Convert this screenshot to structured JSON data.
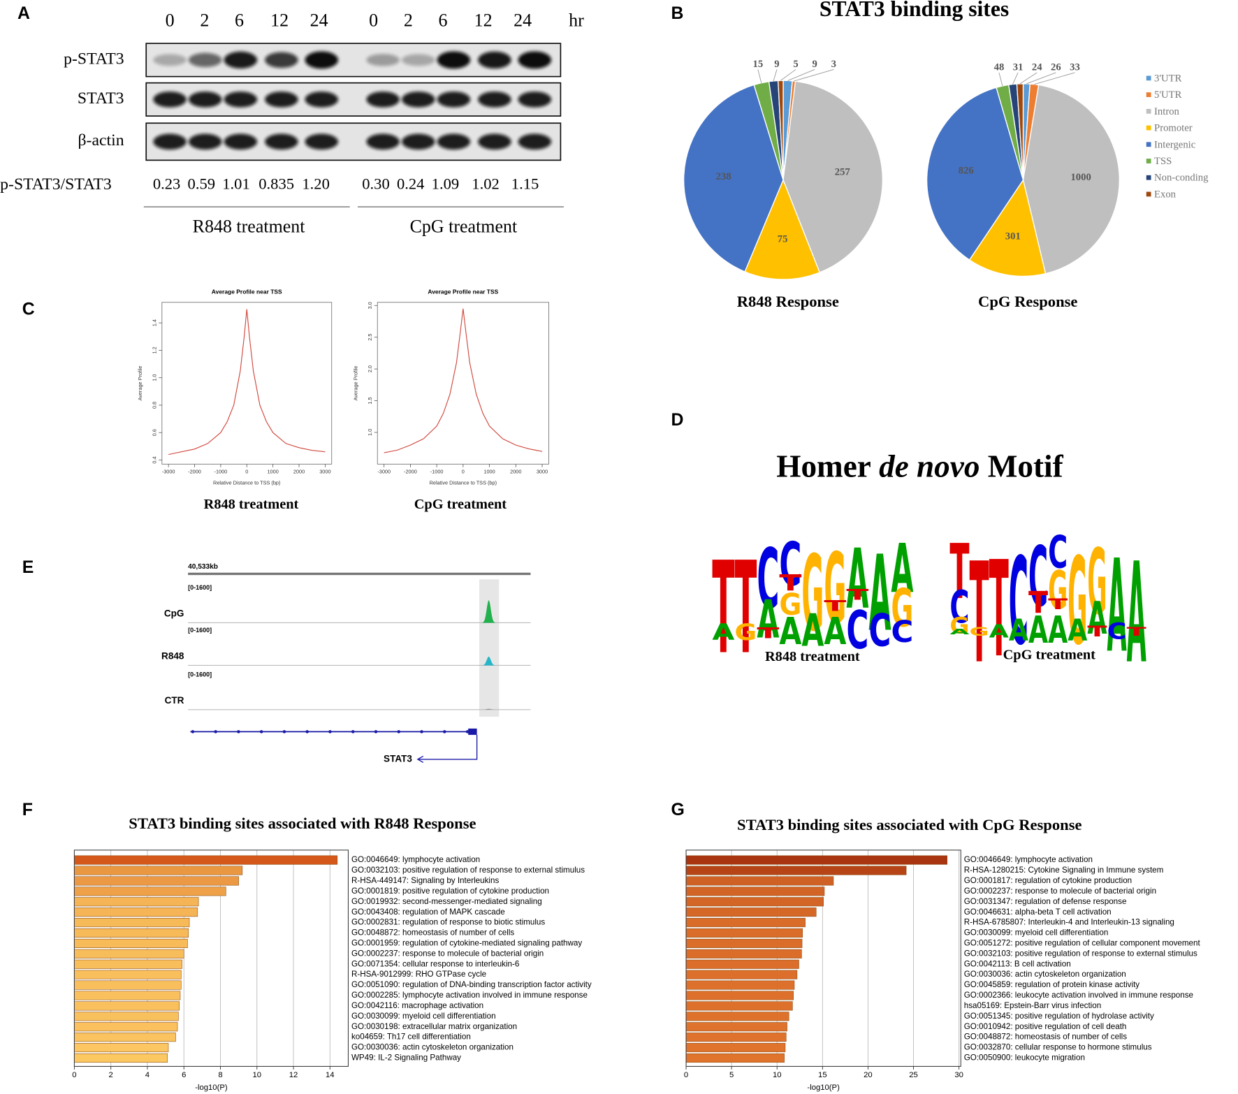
{
  "panel_labels": [
    "A",
    "B",
    "C",
    "D",
    "E",
    "F",
    "G"
  ],
  "western_blot": {
    "timepoints": [
      "0",
      "2",
      "6",
      "12",
      "24",
      "0",
      "2",
      "6",
      "12",
      "24"
    ],
    "time_unit": "hr",
    "rows": [
      "p-STAT3",
      "STAT3",
      "β-actin"
    ],
    "ratio_label": "p-STAT3/STAT3",
    "ratios": [
      "0.23",
      "0.59",
      "1.01",
      "0.835",
      "1.20",
      "0.30",
      "0.24",
      "1.09",
      "1.02",
      "1.15"
    ],
    "groups": [
      "R848 treatment",
      "CpG treatment"
    ]
  },
  "pie_title": "STAT3 binding sites",
  "chart_data": [
    {
      "type": "pie",
      "title": "R848 Response",
      "categories": [
        "3'UTR",
        "5'UTR",
        "Intron",
        "Promoter",
        "Intergenic",
        "TSS",
        "Non-conding",
        "Exon"
      ],
      "values": [
        9,
        3,
        257,
        75,
        238,
        15,
        9,
        5
      ],
      "colors": [
        "#5b9bd5",
        "#ed7d31",
        "#bfbfbf",
        "#ffc000",
        "#4472c4",
        "#70ad47",
        "#264478",
        "#9e480e"
      ],
      "legend": "right"
    },
    {
      "type": "pie",
      "title": "CpG Response",
      "categories": [
        "3'UTR",
        "5'UTR",
        "Intron",
        "Promoter",
        "Intergenic",
        "TSS",
        "Non-conding",
        "Exon"
      ],
      "values": [
        26,
        33,
        1000,
        301,
        826,
        48,
        31,
        24
      ],
      "colors": [
        "#5b9bd5",
        "#ed7d31",
        "#bfbfbf",
        "#ffc000",
        "#4472c4",
        "#70ad47",
        "#264478",
        "#9e480e"
      ]
    },
    {
      "type": "line",
      "title": "Average Profile near TSS",
      "caption": "R848 treatment",
      "x_label": "Relative Distance to TSS (bp)",
      "y_label": "Average Profile",
      "x": [
        -3000,
        -2500,
        -2000,
        -1500,
        -1000,
        -750,
        -500,
        -250,
        -100,
        0,
        100,
        250,
        500,
        750,
        1000,
        1500,
        2000,
        2500,
        3000
      ],
      "values": [
        0.44,
        0.46,
        0.48,
        0.52,
        0.6,
        0.68,
        0.8,
        1.05,
        1.3,
        1.5,
        1.3,
        1.05,
        0.8,
        0.68,
        0.6,
        0.52,
        0.49,
        0.47,
        0.46
      ],
      "color": "#d0463c",
      "xlim": [
        -3250,
        3250
      ],
      "xticks": [
        -3000,
        -2000,
        -1000,
        0,
        1000,
        2000,
        3000
      ],
      "ylim": [
        0.37,
        1.55
      ],
      "yticks": [
        0.4,
        0.6,
        0.8,
        {
          "value": 1,
          "label": "1.0"
        },
        1.2,
        1.4
      ]
    },
    {
      "type": "line",
      "title": "Average Profile near TSS",
      "caption": "CpG treatment",
      "x_label": "Relative Distance to TSS (bp)",
      "y_label": "Average Profile",
      "x": [
        -3000,
        -2500,
        -2000,
        -1500,
        -1000,
        -750,
        -500,
        -250,
        -100,
        0,
        100,
        250,
        500,
        750,
        1000,
        1500,
        2000,
        2500,
        3000
      ],
      "values": [
        0.68,
        0.72,
        0.8,
        0.9,
        1.1,
        1.3,
        1.6,
        2.1,
        2.6,
        2.95,
        2.6,
        2.1,
        1.6,
        1.3,
        1.1,
        0.9,
        0.8,
        0.74,
        0.7
      ],
      "color": "#d0463c",
      "xlim": [
        -3250,
        3250
      ],
      "xticks": [
        -3000,
        -2000,
        -1000,
        0,
        1000,
        2000,
        3000
      ],
      "ylim": [
        0.5,
        3.05
      ],
      "yticks": [
        {
          "value": 1,
          "label": "1.0"
        },
        1.5,
        {
          "value": 2,
          "label": "2.0"
        },
        2.5,
        {
          "value": 3,
          "label": "3.0"
        }
      ]
    },
    {
      "type": "hbar",
      "title": "STAT3 binding sites associated with R848 Response",
      "x_label": "-log10(P)",
      "categories": [
        "GO:0046649: lymphocyte activation",
        "GO:0032103: positive regulation of response to external stimulus",
        "R-HSA-449147: Signaling by Interleukins",
        "GO:0001819: positive regulation of cytokine production",
        "GO:0019932: second-messenger-mediated signaling",
        "GO:0043408: regulation of MAPK cascade",
        "GO:0002831: regulation of response to biotic stimulus",
        "GO:0048872: homeostasis of number of cells",
        "GO:0001959: regulation of cytokine-mediated signaling pathway",
        "GO:0002237: response to molecule of bacterial origin",
        "GO:0071354: cellular response to interleukin-6",
        "R-HSA-9012999: RHO GTPase cycle",
        "GO:0051090: regulation of DNA-binding transcription factor activity",
        "GO:0002285: lymphocyte activation involved in immune response",
        "GO:0042116: macrophage activation",
        "GO:0030099: myeloid cell differentiation",
        "GO:0030198: extracellular matrix organization",
        "ko04659: Th17 cell differentiation",
        "GO:0030036: actin cytoskeleton organization",
        "WP49: IL-2 Signaling Pathway"
      ],
      "values": [
        14.4,
        9.2,
        9.0,
        8.3,
        6.8,
        6.75,
        6.3,
        6.25,
        6.2,
        6.0,
        5.9,
        5.85,
        5.85,
        5.8,
        5.75,
        5.7,
        5.65,
        5.55,
        5.15,
        5.1
      ],
      "color_scale": [
        "#fcc862",
        "#d4581a"
      ],
      "xlim": [
        0,
        15
      ],
      "xticks": [
        0,
        2,
        4,
        6,
        8,
        10,
        12,
        14
      ],
      "grid": true
    },
    {
      "type": "hbar",
      "title": "STAT3 binding sites associated with CpG Response",
      "x_label": "-log10(P)",
      "categories": [
        "GO:0046649: lymphocyte activation",
        "R-HSA-1280215: Cytokine Signaling in Immune system",
        "GO:0001817: regulation of cytokine production",
        "GO:0002237: response to molecule of bacterial origin",
        "GO:0031347: regulation of defense response",
        "GO:0046631: alpha-beta T cell activation",
        "R-HSA-6785807: Interleukin-4 and Interleukin-13 signaling",
        "GO:0030099: myeloid cell differentiation",
        "GO:0051272: positive regulation of cellular component movement",
        "GO:0032103: positive regulation of response to external stimulus",
        "GO:0042113: B cell activation",
        "GO:0030036: actin cytoskeleton organization",
        "GO:0045859: regulation of protein kinase activity",
        "GO:0002366: leukocyte activation involved in immune response",
        "hsa05169: Epstein-Barr virus infection",
        "GO:0051345: positive regulation of hydrolase activity",
        "GO:0010942: positive regulation of cell death",
        "GO:0048872: homeostasis of number of cells",
        "GO:0032870: cellular response to hormone stimulus",
        "GO:0050900: leukocyte migration"
      ],
      "values": [
        28.7,
        24.2,
        16.2,
        15.2,
        15.1,
        14.3,
        13.1,
        12.8,
        12.75,
        12.7,
        12.4,
        12.2,
        11.9,
        11.8,
        11.7,
        11.3,
        11.1,
        11.0,
        10.9,
        10.8
      ],
      "color_scale": [
        "#e0742d",
        "#a83410"
      ],
      "xlim": [
        0,
        30.2
      ],
      "xticks": [
        0,
        5,
        10,
        15,
        20,
        25,
        30
      ],
      "grid": true
    }
  ],
  "motifs": {
    "title": [
      "Homer",
      "de novo",
      "Motif"
    ],
    "colors": {
      "A": "#00a000",
      "C": "#0000e0",
      "G": "#ffb300",
      "T": "#e00000"
    },
    "logos": [
      {
        "caption": "R848 treatment",
        "columns": [
          [
            [
              "T",
              0.85
            ],
            [
              "A",
              0.15
            ]
          ],
          [
            [
              "T",
              0.85
            ],
            [
              "G",
              0.15
            ]
          ],
          [
            [
              "C",
              0.55
            ],
            [
              "A",
              0.35
            ],
            [
              "T",
              0.1
            ]
          ],
          [
            [
              "C",
              0.4
            ],
            [
              "T",
              0.15
            ],
            [
              "G",
              0.2
            ],
            [
              "A",
              0.25
            ]
          ],
          [
            [
              "G",
              0.7
            ],
            [
              "A",
              0.3
            ]
          ],
          [
            [
              "G",
              0.65
            ],
            [
              "T",
              0.1
            ],
            [
              "A",
              0.25
            ]
          ],
          [
            [
              "A",
              0.55
            ],
            [
              "T",
              0.1
            ],
            [
              "C",
              0.35
            ]
          ],
          [
            [
              "A",
              0.7
            ],
            [
              "C",
              0.3
            ]
          ],
          [
            [
              "A",
              0.45
            ],
            [
              "G",
              0.35
            ],
            [
              "C",
              0.2
            ]
          ]
        ]
      },
      {
        "caption": "CpG treatment",
        "columns": [
          [
            [
              "T",
              0.5
            ],
            [
              "C",
              0.3
            ],
            [
              "G",
              0.15
            ],
            [
              "A",
              0.05
            ]
          ],
          [
            [
              "T",
              0.92
            ],
            [
              "G",
              0.08
            ]
          ],
          [
            [
              "T",
              0.88
            ],
            [
              "A",
              0.12
            ]
          ],
          [
            [
              "C",
              0.8
            ],
            [
              "A",
              0.2
            ]
          ],
          [
            [
              "C",
              0.55
            ],
            [
              "T",
              0.2
            ],
            [
              "A",
              0.25
            ]
          ],
          [
            [
              "C",
              0.3
            ],
            [
              "G",
              0.35
            ],
            [
              "T",
              0.1
            ],
            [
              "A",
              0.25
            ]
          ],
          [
            [
              "G",
              0.8
            ],
            [
              "A",
              0.2
            ]
          ],
          [
            [
              "G",
              0.6
            ],
            [
              "A",
              0.3
            ],
            [
              "T",
              0.1
            ]
          ],
          [
            [
              "A",
              0.85
            ],
            [
              "C",
              0.15
            ]
          ],
          [
            [
              "A",
              0.92
            ],
            [
              "T",
              0.08
            ]
          ]
        ]
      }
    ]
  },
  "genome_track": {
    "coordinate": "40,533kb",
    "tracks": [
      {
        "name": "CpG",
        "range_label": "[0-1600]",
        "ylim": [
          0,
          1600
        ],
        "peak": 1150,
        "color": "#22b14c"
      },
      {
        "name": "R848",
        "range_label": "[0-1600]",
        "ylim": [
          0,
          1600
        ],
        "peak": 450,
        "color": "#26b5c8"
      },
      {
        "name": "CTR",
        "range_label": "[0-1600]",
        "ylim": [
          0,
          1600
        ],
        "peak": 40,
        "color": "#888888"
      }
    ],
    "gene": "STAT3"
  }
}
